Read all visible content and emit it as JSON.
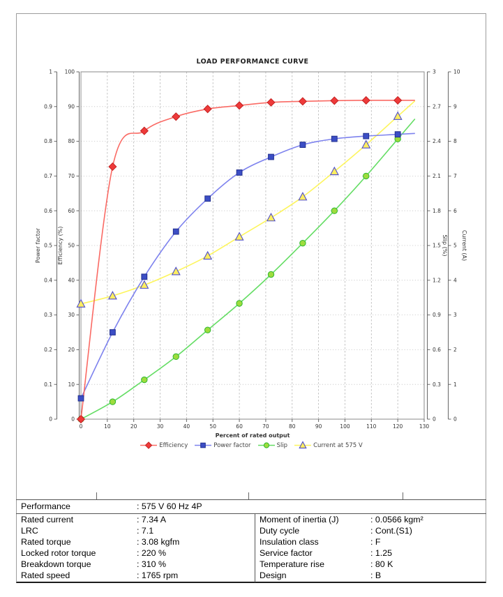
{
  "chart_data": {
    "type": "line",
    "title": "LOAD PERFORMANCE CURVE",
    "xlabel": "Percent of rated output",
    "xlim": [
      0,
      130
    ],
    "x_ticks": [
      "0",
      "10",
      "20",
      "30",
      "40",
      "50",
      "60",
      "70",
      "80",
      "90",
      "100",
      "110",
      "120",
      "130"
    ],
    "grid": true,
    "legend_position": "bottom",
    "x": [
      0,
      12,
      24,
      36,
      48,
      60,
      72,
      84,
      96,
      108,
      120
    ],
    "axes": {
      "power_factor": {
        "label": "Power factor",
        "range": [
          0,
          1
        ],
        "side": "left",
        "ticks": [
          "0",
          "0.1",
          "0.2",
          "0.3",
          "0.4",
          "0.5",
          "0.6",
          "0.7",
          "0.8",
          "0.9",
          "1"
        ]
      },
      "efficiency": {
        "label": "Efficiency (%)",
        "range": [
          0,
          100
        ],
        "side": "left",
        "ticks": [
          "0",
          "10",
          "20",
          "30",
          "40",
          "50",
          "60",
          "70",
          "80",
          "90",
          "100"
        ]
      },
      "slip": {
        "label": "Slip (%)",
        "range": [
          0,
          3
        ],
        "side": "right",
        "ticks": [
          "0",
          "0.3",
          "0.6",
          "0.9",
          "1.2",
          "1.5",
          "1.8",
          "2.1",
          "2.4",
          "2.7",
          "3"
        ]
      },
      "current": {
        "label": "Current (A)",
        "range": [
          0,
          10
        ],
        "side": "right",
        "ticks": [
          "0",
          "1",
          "2",
          "3",
          "4",
          "5",
          "6",
          "7",
          "8",
          "9",
          "10"
        ]
      }
    },
    "series": [
      {
        "name": "Efficiency",
        "axis": "efficiency",
        "marker": "diamond",
        "marker_color": "#ee3a3a",
        "marker_edge": "#c42222",
        "line_color": "#fa6a64",
        "values": [
          0,
          72.7,
          83,
          87.1,
          89.3,
          90.3,
          91.2,
          91.5,
          91.7,
          91.8,
          91.8
        ]
      },
      {
        "name": "Power factor",
        "axis": "power_factor",
        "marker": "square",
        "marker_color": "#3c4ec5",
        "marker_edge": "#22308f",
        "line_color": "#7d82ee",
        "values": [
          0.06,
          0.25,
          0.41,
          0.54,
          0.635,
          0.71,
          0.755,
          0.79,
          0.807,
          0.815,
          0.82
        ]
      },
      {
        "name": "Slip",
        "axis": "slip",
        "marker": "circle",
        "marker_color": "#9edc3e",
        "marker_edge": "#2eb82e",
        "line_color": "#64dd64",
        "values": [
          0,
          0.15,
          0.34,
          0.54,
          0.77,
          1.0,
          1.25,
          1.52,
          1.8,
          2.1,
          2.42
        ]
      },
      {
        "name": "Current at 575 V",
        "axis": "current",
        "marker": "triangle",
        "marker_color": "#ffee60",
        "marker_edge": "#4d4dcc",
        "line_color": "#fdf55e",
        "values": [
          3.32,
          3.55,
          3.86,
          4.25,
          4.7,
          5.25,
          5.8,
          6.4,
          7.13,
          7.9,
          8.72
        ]
      }
    ]
  },
  "table": {
    "performance_label": "Performance",
    "performance_value": ": 575 V 60 Hz 4P",
    "left_rows": [
      {
        "label": "Rated current",
        "value": ": 7.34 A"
      },
      {
        "label": "LRC",
        "value": ": 7.1"
      },
      {
        "label": "Rated torque",
        "value": ": 3.08 kgfm"
      },
      {
        "label": "Locked rotor torque",
        "value": ": 220 %"
      },
      {
        "label": "Breakdown torque",
        "value": ": 310 %"
      },
      {
        "label": "Rated speed",
        "value": ": 1765 rpm"
      }
    ],
    "right_rows": [
      {
        "label": "Moment of inertia (J)",
        "value": ": 0.0566 kgm²"
      },
      {
        "label": "Duty cycle",
        "value": ": Cont.(S1)"
      },
      {
        "label": "Insulation class",
        "value": ": F"
      },
      {
        "label": "Service factor",
        "value": ": 1.25"
      },
      {
        "label": "Temperature rise",
        "value": ": 80 K"
      },
      {
        "label": "Design",
        "value": ": B"
      }
    ]
  }
}
